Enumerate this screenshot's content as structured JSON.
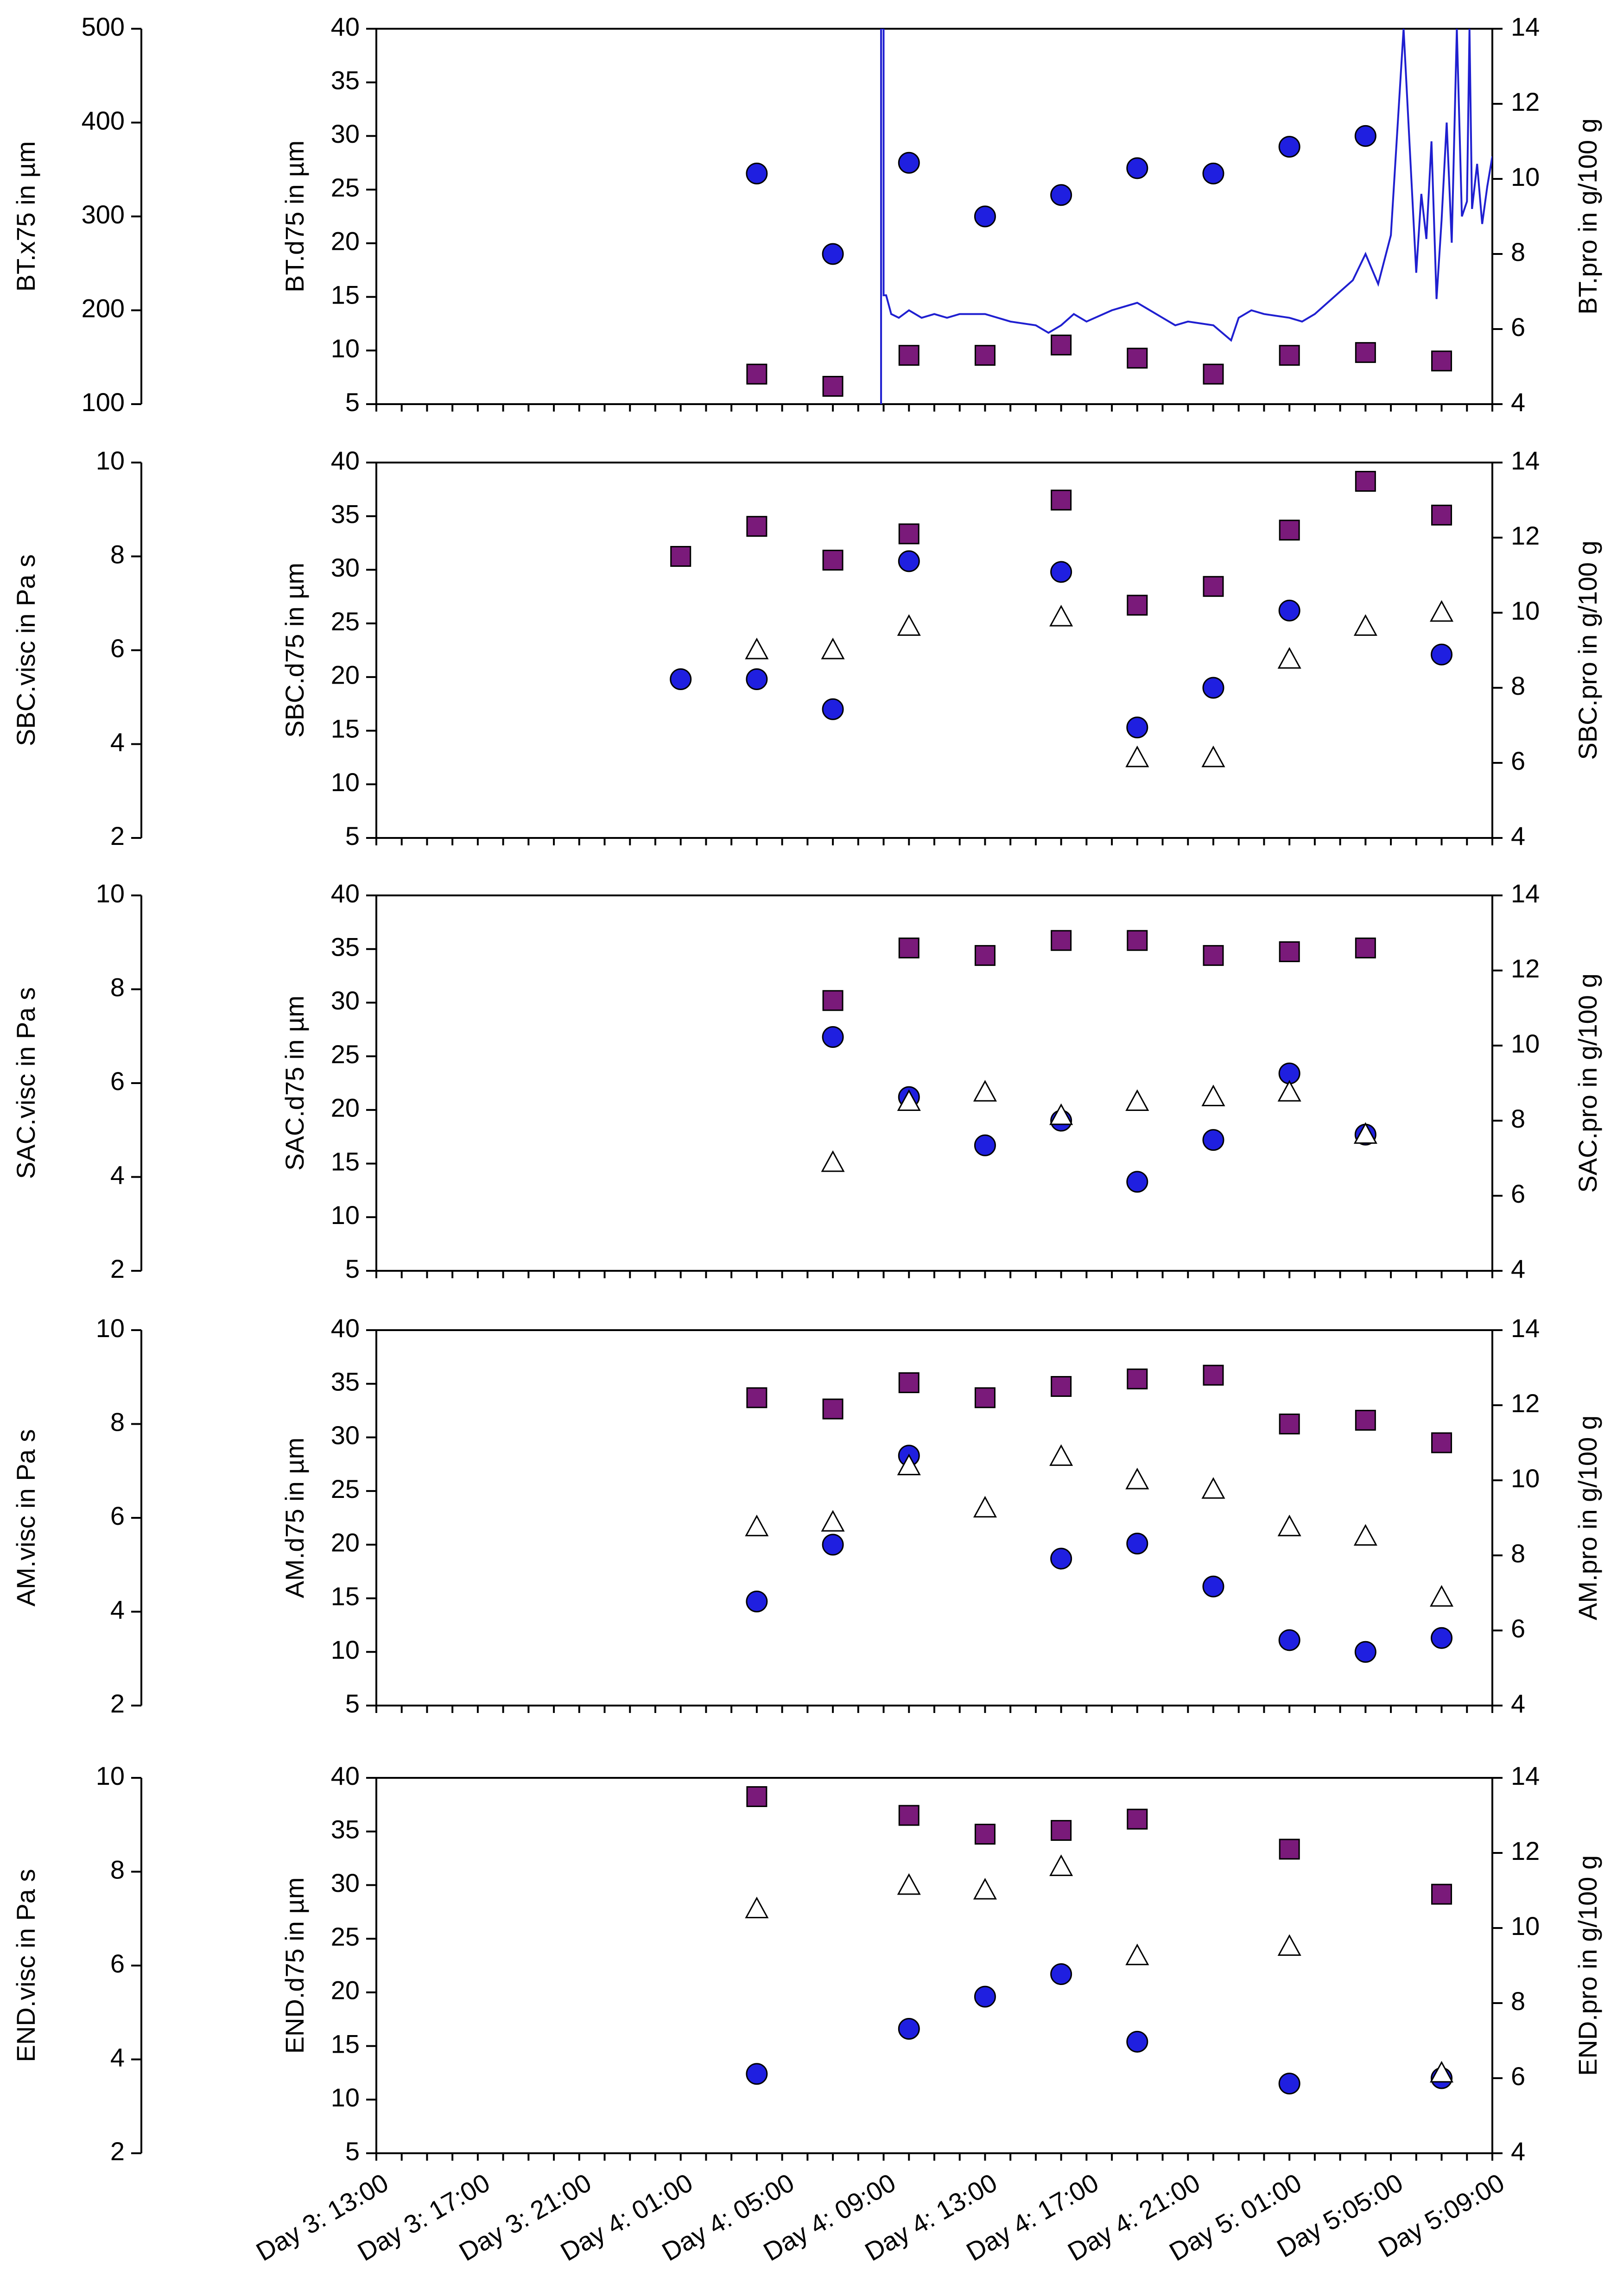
{
  "chart_data": {
    "type": "scatter",
    "x_categories": [
      "Day 3: 13:00",
      "Day 3: 17:00",
      "Day 3: 21:00",
      "Day 4: 01:00",
      "Day 4: 05:00",
      "Day 4: 09:00",
      "Day 4: 13:00",
      "Day 4: 17:00",
      "Day 4: 21:00",
      "Day 5: 01:00",
      "Day 5:05:00",
      "Day 5:09:00"
    ],
    "x_range_hours": [
      0,
      44
    ],
    "panels": [
      {
        "id": "bt",
        "outer_ylabel": "BT.x75 in µm",
        "outer_ylim": [
          100,
          500
        ],
        "outer_ticks": [
          "100",
          "200",
          "300",
          "400",
          "500"
        ],
        "left_ylabel": "BT.d75 in µm",
        "left_ylim": [
          5,
          40
        ],
        "left_ticks": [
          "5",
          "10",
          "15",
          "20",
          "25",
          "30",
          "35",
          "40"
        ],
        "right_ylabel": "BT.pro in g/100 g",
        "right_ylim": [
          4,
          14
        ],
        "right_ticks": [
          "4",
          "6",
          "8",
          "10",
          "12",
          "14"
        ],
        "series": [
          {
            "name": "BT.d75",
            "marker": "circle",
            "axis": "left",
            "x": [
              15,
              18,
              21,
              24,
              27,
              30,
              33,
              36,
              39
            ],
            "y": [
              26.5,
              19,
              27.5,
              22.5,
              24.5,
              27,
              26.5,
              29,
              30
            ]
          },
          {
            "name": "BT.x75",
            "marker": "square",
            "axis": "outer",
            "x": [
              15,
              18,
              21,
              24,
              27,
              30,
              33,
              36,
              39,
              42
            ],
            "y": [
              132,
              119,
              152,
              152,
              163,
              149,
              132,
              152,
              155,
              146
            ]
          },
          {
            "name": "BT.pro",
            "marker": "line",
            "axis": "right",
            "x": [
              19.9,
              19.9,
              20,
              20,
              20.1,
              20.3,
              20.6,
              21,
              21.5,
              22,
              22.5,
              23,
              24,
              25,
              26,
              26.5,
              27,
              27.5,
              28,
              29,
              30,
              30.5,
              31,
              31.5,
              32,
              33,
              33.7,
              34,
              34.5,
              35,
              36,
              36.5,
              37,
              37.5,
              38,
              38.5,
              39,
              39.5,
              40,
              40.5,
              41,
              41.2,
              41.4,
              41.6,
              41.8,
              42,
              42.2,
              42.4,
              42.6,
              42.8,
              43,
              43.1,
              43.2,
              43.4,
              43.6,
              43.8,
              44
            ],
            "y": [
              4,
              14,
              14,
              6.9,
              6.9,
              6.4,
              6.3,
              6.5,
              6.3,
              6.4,
              6.3,
              6.4,
              6.4,
              6.2,
              6.1,
              5.9,
              6.1,
              6.4,
              6.2,
              6.5,
              6.7,
              6.5,
              6.3,
              6.1,
              6.2,
              6.1,
              5.7,
              6.3,
              6.5,
              6.4,
              6.3,
              6.2,
              6.4,
              6.7,
              7.0,
              7.3,
              8.0,
              7.2,
              8.5,
              14,
              7.5,
              9.6,
              8.4,
              11,
              6.8,
              8.9,
              11.5,
              8.3,
              14,
              9.0,
              9.4,
              14,
              9.2,
              10.4,
              8.8,
              9.8,
              10.6
            ]
          }
        ]
      },
      {
        "id": "sbc",
        "outer_ylabel": "SBC.visc in Pa s",
        "outer_ylim": [
          2,
          10
        ],
        "outer_ticks": [
          "2",
          "4",
          "6",
          "8",
          "10"
        ],
        "left_ylabel": "SBC.d75 in µm",
        "left_ylim": [
          5,
          40
        ],
        "left_ticks": [
          "5",
          "10",
          "15",
          "20",
          "25",
          "30",
          "35",
          "40"
        ],
        "right_ylabel": "SBC.pro in g/100 g",
        "right_ylim": [
          4,
          14
        ],
        "right_ticks": [
          "4",
          "6",
          "8",
          "10",
          "12",
          "14"
        ],
        "series": [
          {
            "name": "SBC.d75",
            "marker": "circle",
            "axis": "left",
            "x": [
              12,
              15,
              18,
              21,
              27,
              30,
              33,
              36,
              42
            ],
            "y": [
              19.8,
              19.8,
              17,
              30.8,
              29.8,
              15.3,
              19,
              26.2,
              22.1
            ]
          },
          {
            "name": "SBC.pro",
            "marker": "square",
            "axis": "right",
            "x": [
              12,
              15,
              18,
              21,
              27,
              30,
              33,
              36,
              39,
              42
            ],
            "y": [
              11.5,
              12.3,
              11.4,
              12.1,
              13.0,
              10.2,
              10.7,
              12.2,
              13.5,
              12.6
            ]
          },
          {
            "name": "SBC.visc",
            "marker": "triangle",
            "axis": "outer",
            "x": [
              15,
              18,
              21,
              27,
              30,
              33,
              36,
              39,
              42
            ],
            "y": [
              6.0,
              6.0,
              6.5,
              6.7,
              3.7,
              3.7,
              5.8,
              6.5,
              6.8
            ]
          }
        ]
      },
      {
        "id": "sac",
        "outer_ylabel": "SAC.visc in Pa s",
        "outer_ylim": [
          2,
          10
        ],
        "outer_ticks": [
          "2",
          "4",
          "6",
          "8",
          "10"
        ],
        "left_ylabel": "SAC.d75 in µm",
        "left_ylim": [
          5,
          40
        ],
        "left_ticks": [
          "5",
          "10",
          "15",
          "20",
          "25",
          "30",
          "35",
          "40"
        ],
        "right_ylabel": "SAC.pro in g/100 g",
        "right_ylim": [
          4,
          14
        ],
        "right_ticks": [
          "4",
          "6",
          "8",
          "10",
          "12",
          "14"
        ],
        "series": [
          {
            "name": "SAC.d75",
            "marker": "circle",
            "axis": "left",
            "x": [
              18,
              21,
              24,
              27,
              30,
              33,
              36,
              39
            ],
            "y": [
              26.8,
              21.2,
              16.7,
              19.0,
              13.3,
              17.2,
              23.4,
              17.7
            ]
          },
          {
            "name": "SAC.pro",
            "marker": "square",
            "axis": "right",
            "x": [
              18,
              21,
              24,
              27,
              30,
              33,
              36,
              39
            ],
            "y": [
              11.2,
              12.6,
              12.4,
              12.8,
              12.8,
              12.4,
              12.5,
              12.6
            ]
          },
          {
            "name": "SAC.visc",
            "marker": "triangle",
            "axis": "outer",
            "x": [
              18,
              21,
              24,
              27,
              30,
              33,
              36,
              39
            ],
            "y": [
              4.3,
              5.6,
              5.8,
              5.3,
              5.6,
              5.7,
              5.8,
              4.9
            ]
          }
        ]
      },
      {
        "id": "am",
        "outer_ylabel": "AM.visc in Pa s",
        "outer_ylim": [
          2,
          10
        ],
        "outer_ticks": [
          "2",
          "4",
          "6",
          "8",
          "10"
        ],
        "left_ylabel": "AM.d75 in µm",
        "left_ylim": [
          5,
          40
        ],
        "left_ticks": [
          "5",
          "10",
          "15",
          "20",
          "25",
          "30",
          "35",
          "40"
        ],
        "right_ylabel": "AM.pro in g/100 g",
        "right_ylim": [
          4,
          14
        ],
        "right_ticks": [
          "4",
          "6",
          "8",
          "10",
          "12",
          "14"
        ],
        "series": [
          {
            "name": "AM.d75",
            "marker": "circle",
            "axis": "left",
            "x": [
              15,
              18,
              21,
              27,
              30,
              33,
              36,
              39,
              42
            ],
            "y": [
              14.7,
              20,
              28.3,
              18.7,
              20.1,
              16.1,
              11.1,
              10.0,
              11.3
            ]
          },
          {
            "name": "AM.pro",
            "marker": "square",
            "axis": "right",
            "x": [
              15,
              18,
              21,
              24,
              27,
              30,
              33,
              36,
              39,
              42
            ],
            "y": [
              12.2,
              11.9,
              12.6,
              12.2,
              12.5,
              12.7,
              12.8,
              11.5,
              11.6,
              11.0
            ]
          },
          {
            "name": "AM.visc",
            "marker": "triangle",
            "axis": "outer",
            "x": [
              15,
              18,
              21,
              24,
              27,
              30,
              33,
              36,
              39,
              42
            ],
            "y": [
              5.8,
              5.9,
              7.1,
              6.2,
              7.3,
              6.8,
              6.6,
              5.8,
              5.6,
              4.3
            ]
          }
        ]
      },
      {
        "id": "end",
        "outer_ylabel": "END.visc in Pa s",
        "outer_ylim": [
          2,
          10
        ],
        "outer_ticks": [
          "2",
          "4",
          "6",
          "8",
          "10"
        ],
        "left_ylabel": "END.d75 in µm",
        "left_ylim": [
          5,
          40
        ],
        "left_ticks": [
          "5",
          "10",
          "15",
          "20",
          "25",
          "30",
          "35",
          "40"
        ],
        "right_ylabel": "END.pro in g/100 g",
        "right_ylim": [
          4,
          14
        ],
        "right_ticks": [
          "4",
          "6",
          "8",
          "10",
          "12",
          "14"
        ],
        "series": [
          {
            "name": "END.d75",
            "marker": "circle",
            "axis": "left",
            "x": [
              15,
              21,
              24,
              27,
              30,
              36,
              42
            ],
            "y": [
              12.4,
              16.6,
              19.6,
              21.7,
              15.4,
              11.5,
              12.0
            ]
          },
          {
            "name": "END.pro",
            "marker": "square",
            "axis": "right",
            "x": [
              15,
              21,
              24,
              27,
              30,
              36,
              42
            ],
            "y": [
              13.5,
              13.0,
              12.5,
              12.6,
              12.9,
              12.1,
              10.9
            ]
          },
          {
            "name": "END.visc",
            "marker": "triangle",
            "axis": "outer",
            "x": [
              15,
              21,
              24,
              27,
              30,
              36,
              42
            ],
            "y": [
              7.2,
              7.7,
              7.6,
              8.1,
              6.2,
              6.4,
              3.7
            ]
          }
        ]
      }
    ]
  },
  "colors": {
    "circle_fill": "#1f1fe0",
    "square_fill": "#7a1a7a",
    "triangle_fill": "#ffffff",
    "line": "#1f1fd0",
    "axis": "#000000"
  }
}
